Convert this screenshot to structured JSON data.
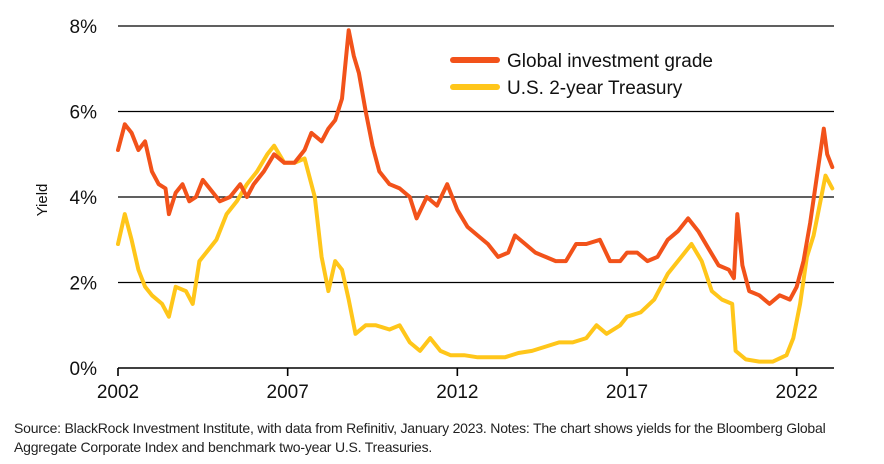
{
  "colors": {
    "global_ig": "#f2521a",
    "us_2y": "#ffc61a",
    "grid": "#000000"
  },
  "chart_data": {
    "type": "line",
    "ylabel": "Yield",
    "xlim": [
      2002.0,
      2023.1
    ],
    "ylim": [
      0,
      8
    ],
    "y_ticks": [
      0,
      2,
      4,
      6,
      8
    ],
    "y_tick_labels": [
      "0%",
      "2%",
      "4%",
      "6%",
      "8%"
    ],
    "x_ticks": [
      2002,
      2007,
      2012,
      2017,
      2022
    ],
    "x_tick_labels": [
      "2002",
      "2007",
      "2012",
      "2017",
      "2022"
    ],
    "grid": "horizontal",
    "legend_position": "top-right",
    "series": [
      {
        "name": "Global investment grade",
        "color": "#f2521a",
        "points": [
          [
            2002.0,
            5.1
          ],
          [
            2002.2,
            5.7
          ],
          [
            2002.4,
            5.5
          ],
          [
            2002.6,
            5.1
          ],
          [
            2002.8,
            5.3
          ],
          [
            2003.0,
            4.6
          ],
          [
            2003.2,
            4.3
          ],
          [
            2003.4,
            4.2
          ],
          [
            2003.5,
            3.6
          ],
          [
            2003.7,
            4.1
          ],
          [
            2003.9,
            4.3
          ],
          [
            2004.1,
            3.9
          ],
          [
            2004.3,
            4.0
          ],
          [
            2004.5,
            4.4
          ],
          [
            2004.7,
            4.2
          ],
          [
            2005.0,
            3.9
          ],
          [
            2005.3,
            4.0
          ],
          [
            2005.6,
            4.3
          ],
          [
            2005.8,
            4.0
          ],
          [
            2006.0,
            4.3
          ],
          [
            2006.3,
            4.6
          ],
          [
            2006.6,
            5.0
          ],
          [
            2006.9,
            4.8
          ],
          [
            2007.2,
            4.8
          ],
          [
            2007.5,
            5.1
          ],
          [
            2007.7,
            5.5
          ],
          [
            2008.0,
            5.3
          ],
          [
            2008.2,
            5.6
          ],
          [
            2008.4,
            5.8
          ],
          [
            2008.6,
            6.3
          ],
          [
            2008.8,
            7.9
          ],
          [
            2008.95,
            7.3
          ],
          [
            2009.1,
            6.9
          ],
          [
            2009.3,
            6.0
          ],
          [
            2009.5,
            5.2
          ],
          [
            2009.7,
            4.6
          ],
          [
            2010.0,
            4.3
          ],
          [
            2010.3,
            4.2
          ],
          [
            2010.6,
            4.0
          ],
          [
            2010.8,
            3.5
          ],
          [
            2011.1,
            4.0
          ],
          [
            2011.4,
            3.8
          ],
          [
            2011.7,
            4.3
          ],
          [
            2012.0,
            3.7
          ],
          [
            2012.3,
            3.3
          ],
          [
            2012.6,
            3.1
          ],
          [
            2012.9,
            2.9
          ],
          [
            2013.2,
            2.6
          ],
          [
            2013.5,
            2.7
          ],
          [
            2013.7,
            3.1
          ],
          [
            2014.0,
            2.9
          ],
          [
            2014.3,
            2.7
          ],
          [
            2014.6,
            2.6
          ],
          [
            2014.9,
            2.5
          ],
          [
            2015.2,
            2.5
          ],
          [
            2015.5,
            2.9
          ],
          [
            2015.8,
            2.9
          ],
          [
            2016.2,
            3.0
          ],
          [
            2016.5,
            2.5
          ],
          [
            2016.8,
            2.5
          ],
          [
            2017.0,
            2.7
          ],
          [
            2017.3,
            2.7
          ],
          [
            2017.6,
            2.5
          ],
          [
            2017.9,
            2.6
          ],
          [
            2018.2,
            3.0
          ],
          [
            2018.5,
            3.2
          ],
          [
            2018.8,
            3.5
          ],
          [
            2019.1,
            3.2
          ],
          [
            2019.4,
            2.8
          ],
          [
            2019.7,
            2.4
          ],
          [
            2020.0,
            2.3
          ],
          [
            2020.15,
            2.1
          ],
          [
            2020.25,
            3.6
          ],
          [
            2020.4,
            2.4
          ],
          [
            2020.6,
            1.8
          ],
          [
            2020.9,
            1.7
          ],
          [
            2021.2,
            1.5
          ],
          [
            2021.5,
            1.7
          ],
          [
            2021.8,
            1.6
          ],
          [
            2022.0,
            1.9
          ],
          [
            2022.2,
            2.5
          ],
          [
            2022.4,
            3.4
          ],
          [
            2022.6,
            4.5
          ],
          [
            2022.8,
            5.6
          ],
          [
            2022.9,
            5.0
          ],
          [
            2023.05,
            4.7
          ]
        ]
      },
      {
        "name": "U.S. 2-year Treasury",
        "color": "#ffc61a",
        "points": [
          [
            2002.0,
            2.9
          ],
          [
            2002.2,
            3.6
          ],
          [
            2002.4,
            3.0
          ],
          [
            2002.6,
            2.3
          ],
          [
            2002.8,
            1.9
          ],
          [
            2003.0,
            1.7
          ],
          [
            2003.3,
            1.5
          ],
          [
            2003.5,
            1.2
          ],
          [
            2003.7,
            1.9
          ],
          [
            2004.0,
            1.8
          ],
          [
            2004.2,
            1.5
          ],
          [
            2004.4,
            2.5
          ],
          [
            2004.6,
            2.7
          ],
          [
            2004.9,
            3.0
          ],
          [
            2005.2,
            3.6
          ],
          [
            2005.5,
            3.9
          ],
          [
            2005.8,
            4.3
          ],
          [
            2006.1,
            4.6
          ],
          [
            2006.4,
            5.0
          ],
          [
            2006.6,
            5.2
          ],
          [
            2006.9,
            4.8
          ],
          [
            2007.2,
            4.8
          ],
          [
            2007.5,
            4.9
          ],
          [
            2007.8,
            4.0
          ],
          [
            2008.0,
            2.6
          ],
          [
            2008.2,
            1.8
          ],
          [
            2008.4,
            2.5
          ],
          [
            2008.6,
            2.3
          ],
          [
            2008.8,
            1.6
          ],
          [
            2009.0,
            0.8
          ],
          [
            2009.3,
            1.0
          ],
          [
            2009.6,
            1.0
          ],
          [
            2010.0,
            0.9
          ],
          [
            2010.3,
            1.0
          ],
          [
            2010.6,
            0.6
          ],
          [
            2010.9,
            0.4
          ],
          [
            2011.2,
            0.7
          ],
          [
            2011.5,
            0.4
          ],
          [
            2011.8,
            0.3
          ],
          [
            2012.2,
            0.3
          ],
          [
            2012.6,
            0.25
          ],
          [
            2013.0,
            0.25
          ],
          [
            2013.4,
            0.25
          ],
          [
            2013.8,
            0.35
          ],
          [
            2014.2,
            0.4
          ],
          [
            2014.6,
            0.5
          ],
          [
            2015.0,
            0.6
          ],
          [
            2015.4,
            0.6
          ],
          [
            2015.8,
            0.7
          ],
          [
            2016.1,
            1.0
          ],
          [
            2016.4,
            0.8
          ],
          [
            2016.8,
            1.0
          ],
          [
            2017.0,
            1.2
          ],
          [
            2017.4,
            1.3
          ],
          [
            2017.8,
            1.6
          ],
          [
            2018.2,
            2.2
          ],
          [
            2018.6,
            2.6
          ],
          [
            2018.9,
            2.9
          ],
          [
            2019.2,
            2.5
          ],
          [
            2019.5,
            1.8
          ],
          [
            2019.8,
            1.6
          ],
          [
            2020.1,
            1.5
          ],
          [
            2020.2,
            0.4
          ],
          [
            2020.5,
            0.2
          ],
          [
            2020.9,
            0.15
          ],
          [
            2021.3,
            0.15
          ],
          [
            2021.7,
            0.3
          ],
          [
            2021.9,
            0.7
          ],
          [
            2022.1,
            1.5
          ],
          [
            2022.3,
            2.6
          ],
          [
            2022.5,
            3.1
          ],
          [
            2022.7,
            3.9
          ],
          [
            2022.85,
            4.5
          ],
          [
            2023.05,
            4.2
          ]
        ]
      }
    ]
  },
  "footnote": "Source: BlackRock Investment Institute, with data from Refinitiv, January 2023. Notes: The chart shows yields for the Bloomberg Global Aggregate Corporate Index and benchmark two-year U.S. Treasuries."
}
